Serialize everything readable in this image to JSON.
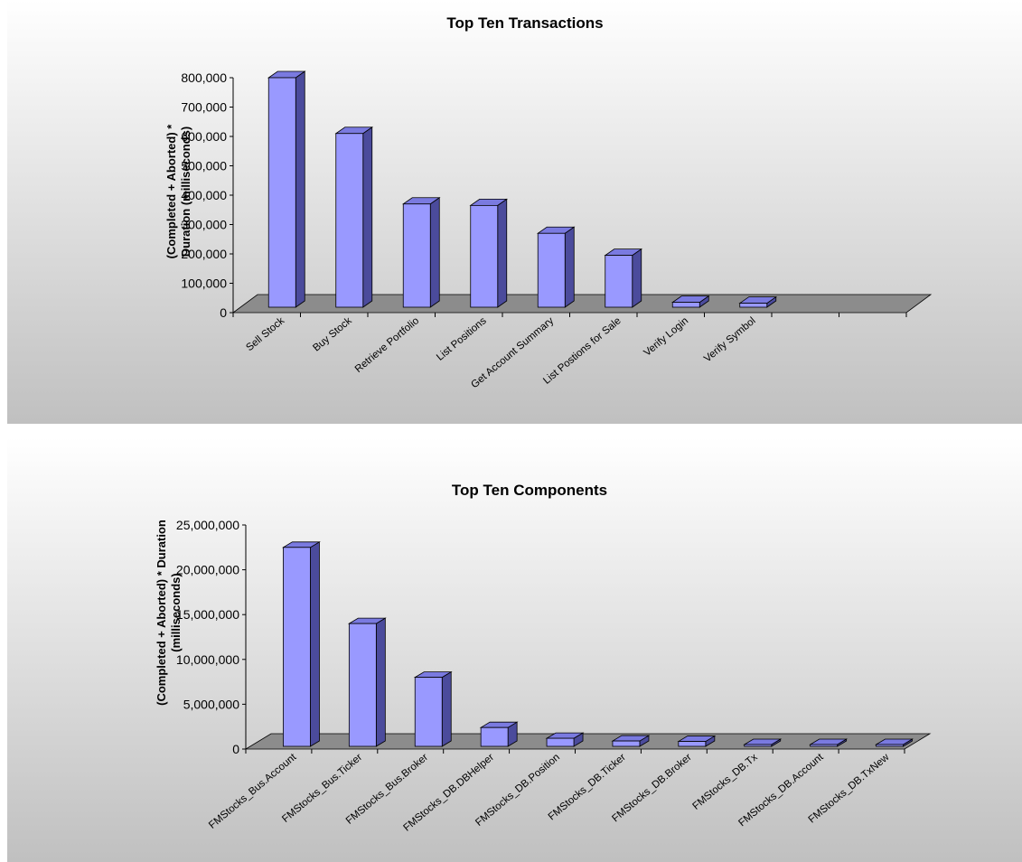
{
  "colors": {
    "bar_front": "#9999ff",
    "bar_top": "#7a7ae0",
    "bar_side": "#4b4b9c",
    "floor": "#8c8c8c",
    "background_top": "#ffffff",
    "background_bottom": "#c0c0c0"
  },
  "chart_data": [
    {
      "type": "bar",
      "style": "3d-column",
      "title": "Top Ten Transactions",
      "xlabel": "",
      "ylabel_lines": [
        "(Completed + Aborted) *",
        "Duration (milliseconds)"
      ],
      "ylim": [
        0,
        800000
      ],
      "yticks": [
        0,
        100000,
        200000,
        300000,
        400000,
        500000,
        600000,
        700000,
        800000
      ],
      "ytick_labels": [
        "0",
        "100,000",
        "200,000",
        "300,000",
        "400,000",
        "500,000",
        "600,000",
        "700,000",
        "800,000"
      ],
      "categories": [
        "Sell Stock",
        "Buy Stock",
        "Retrieve Portfolio",
        "List Positions",
        "Get Account Summary",
        "List Postions for Sale",
        "Verify Login",
        "Verify Symbol",
        "",
        ""
      ],
      "values": [
        800000,
        610000,
        370000,
        365000,
        270000,
        195000,
        35000,
        32000,
        null,
        null
      ],
      "grid": false,
      "legend": "none"
    },
    {
      "type": "bar",
      "style": "3d-column",
      "title": "Top Ten Components",
      "xlabel": "",
      "ylabel_lines": [
        "(Completed + Aborted) * Duration",
        "(milliseconds)"
      ],
      "ylim": [
        0,
        25000000
      ],
      "yticks": [
        0,
        5000000,
        10000000,
        15000000,
        20000000,
        25000000
      ],
      "ytick_labels": [
        "0",
        "5,000,000",
        "10,000,000",
        "15,000,000",
        "20,000,000",
        "25,000,000"
      ],
      "categories": [
        "FMStocks_Bus.Account",
        "FMStocks_Bus.Ticker",
        "FMStocks_Bus.Broker",
        "FMStocks_DB.DBHelper",
        "FMStocks_DB.Position",
        "FMStocks_DB.Ticker",
        "FMStocks_DB.Broker",
        "FMStocks_DB.Tx",
        "FMStocks_DB.Account",
        "FMStocks_DB.TxNew"
      ],
      "values": [
        22500000,
        14000000,
        8000000,
        2400000,
        1200000,
        900000,
        850000,
        250000,
        200000,
        50000
      ],
      "grid": false,
      "legend": "none"
    }
  ]
}
